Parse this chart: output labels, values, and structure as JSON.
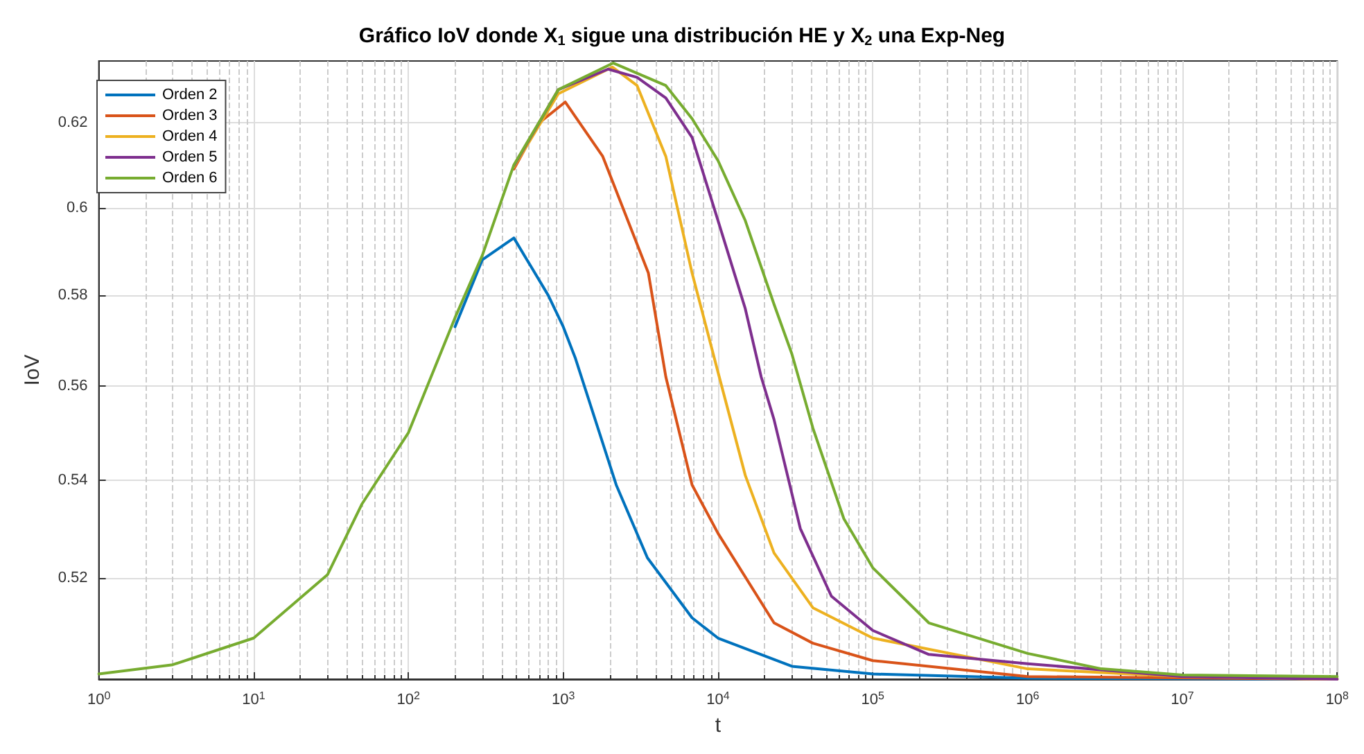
{
  "chart_data": {
    "type": "line",
    "title": "Gráfico IoV donde X$_{1}$ sigue una distribución HE y X$_{2}$ una Exp-Neg",
    "xlabel": "t",
    "ylabel": "IoV",
    "log": "xy",
    "grid": true,
    "legend": "top left",
    "line_style": "solid",
    "marker": "none",
    "xlim": [
      1,
      100000000
    ],
    "ylim": [
      0.5,
      0.635
    ],
    "xticks": [
      {
        "value": 1,
        "label": "10$^{0}$"
      },
      {
        "value": 10,
        "label": "10$^{1}$"
      },
      {
        "value": 100,
        "label": "10$^{2}$"
      },
      {
        "value": 1000,
        "label": "10$^{3}$"
      },
      {
        "value": 10000,
        "label": "10$^{4}$"
      },
      {
        "value": 100000,
        "label": "10$^{5}$"
      },
      {
        "value": 1000000,
        "label": "10$^{6}$"
      },
      {
        "value": 10000000,
        "label": "10$^{7}$"
      },
      {
        "value": 100000000,
        "label": "10$^{8}$"
      }
    ],
    "yticks": [
      0.52,
      0.54,
      0.56,
      0.58,
      0.6,
      0.62
    ],
    "series": [
      {
        "name": "Orden 2",
        "color": "#0072bd",
        "x": [
          200,
          300,
          480,
          800,
          1000,
          1200,
          2200,
          3500,
          6800,
          10000,
          30000,
          100000,
          1000000,
          100000000
        ],
        "values": [
          0.573,
          0.588,
          0.593,
          0.58,
          0.573,
          0.566,
          0.539,
          0.524,
          0.512,
          0.508,
          0.5025,
          0.501,
          0.5002,
          0.5
        ]
      },
      {
        "name": "Orden 3",
        "color": "#d95319",
        "x": [
          480,
          700,
          1030,
          1800,
          3550,
          4600,
          6800,
          10000,
          23000,
          41000,
          100000,
          1000000,
          100000000
        ],
        "values": [
          0.609,
          0.62,
          0.625,
          0.612,
          0.585,
          0.562,
          0.539,
          0.529,
          0.511,
          0.507,
          0.5036,
          0.5005,
          0.5
        ]
      },
      {
        "name": "Orden 4",
        "color": "#edb120",
        "x": [
          480,
          930,
          2080,
          3000,
          4600,
          6800,
          10000,
          15000,
          23000,
          41000,
          100000,
          1000000,
          10000000,
          100000000
        ],
        "values": [
          0.6095,
          0.627,
          0.6335,
          0.629,
          0.612,
          0.585,
          0.563,
          0.541,
          0.525,
          0.514,
          0.508,
          0.502,
          0.5005,
          0.5
        ]
      },
      {
        "name": "Orden 5",
        "color": "#7e2f8e",
        "x": [
          480,
          930,
          1950,
          3000,
          4600,
          6800,
          10000,
          15000,
          19000,
          23000,
          34000,
          54000,
          100000,
          230000,
          1000000,
          10000000,
          100000000
        ],
        "values": [
          0.6098,
          0.628,
          0.633,
          0.631,
          0.626,
          0.6165,
          0.597,
          0.577,
          0.562,
          0.5528,
          0.53,
          0.5163,
          0.5095,
          0.5048,
          0.503,
          0.5005,
          0.5
        ]
      },
      {
        "name": "Orden 6",
        "color": "#77ac30",
        "x": [
          1,
          3,
          10,
          30,
          50,
          100,
          200,
          300,
          480,
          930,
          2100,
          4600,
          6800,
          10000,
          15000,
          23000,
          30000,
          41000,
          65000,
          100000,
          230000,
          1000000,
          3000000,
          10000000,
          100000000
        ],
        "values": [
          0.501,
          0.5028,
          0.508,
          0.5206,
          0.535,
          0.55,
          0.575,
          0.589,
          0.61,
          0.628,
          0.6345,
          0.629,
          0.621,
          0.611,
          0.597,
          0.578,
          0.567,
          0.551,
          0.532,
          0.522,
          0.511,
          0.505,
          0.502,
          0.5008,
          0.5005
        ]
      }
    ]
  }
}
